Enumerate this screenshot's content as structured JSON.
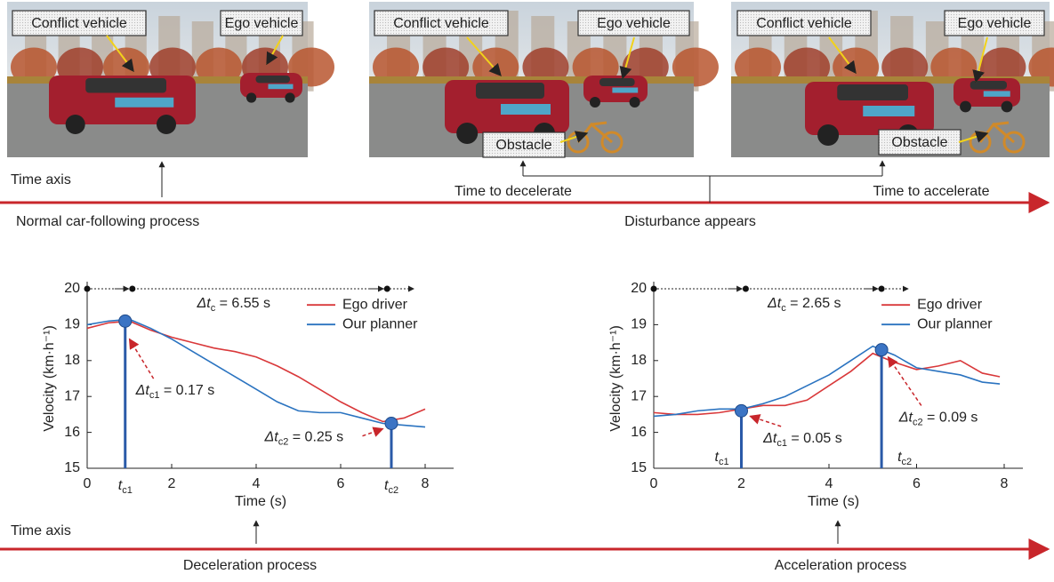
{
  "top": {
    "axis_label": "Time axis",
    "events": [
      "Normal car-following process",
      "Disturbance appears"
    ],
    "phases": [
      "Time to decelerate",
      "Time to accelerate"
    ]
  },
  "photos": [
    [
      "Conflict vehicle",
      "Ego vehicle"
    ],
    [
      "Conflict vehicle",
      "Ego vehicle",
      "Obstacle"
    ],
    [
      "Conflict vehicle",
      "Ego vehicle",
      "Obstacle"
    ]
  ],
  "bottom": {
    "axis_label": "Time axis",
    "events": [
      "Deceleration process",
      "Acceleration process"
    ]
  },
  "chart_data": [
    {
      "type": "line",
      "xlabel": "Time (s)",
      "ylabel": "Velocity (km·h⁻¹)",
      "xlim": [
        0,
        8
      ],
      "ylim": [
        15,
        20
      ],
      "xticks": [
        0,
        2,
        4,
        6,
        8
      ],
      "yticks": [
        15,
        16,
        17,
        18,
        19,
        20
      ],
      "x": [
        0,
        0.5,
        1,
        1.5,
        2,
        2.5,
        3,
        3.5,
        4,
        4.5,
        5,
        5.5,
        6,
        6.5,
        7,
        7.5,
        8
      ],
      "series": [
        {
          "name": "Ego driver",
          "color": "#d9383a",
          "values": [
            18.9,
            19.05,
            19.1,
            18.85,
            18.65,
            18.5,
            18.35,
            18.25,
            18.1,
            17.85,
            17.55,
            17.2,
            16.85,
            16.55,
            16.3,
            16.4,
            16.65
          ]
        },
        {
          "name": "Our planner",
          "color": "#2a73c0",
          "values": [
            19.0,
            19.1,
            19.15,
            18.9,
            18.6,
            18.25,
            17.9,
            17.55,
            17.2,
            16.85,
            16.6,
            16.55,
            16.55,
            16.4,
            16.25,
            16.2,
            16.15
          ]
        }
      ],
      "markers": {
        "x": [
          0.9,
          7.2
        ],
        "y": [
          19.1,
          16.25
        ]
      },
      "timeline_x": [
        0,
        1.07,
        7.1
      ],
      "annotations": {
        "delta_c": {
          "text": "Δt",
          "sub": "c",
          "suffix": " = 6.55 s"
        },
        "delta_1": {
          "text": "Δt",
          "sub": "c1",
          "suffix": " = 0.17 s"
        },
        "delta_2": {
          "text": "Δt",
          "sub": "c2",
          "suffix": " = 0.25 s"
        },
        "t1": {
          "text": "t",
          "sub": "c1"
        },
        "t2": {
          "text": "t",
          "sub": "c2"
        }
      }
    },
    {
      "type": "line",
      "xlabel": "Time (s)",
      "ylabel": "Velocity (km·h⁻¹)",
      "xlim": [
        0,
        8
      ],
      "ylim": [
        15,
        20
      ],
      "xticks": [
        0,
        2,
        4,
        6,
        8
      ],
      "yticks": [
        15,
        16,
        17,
        18,
        19,
        20
      ],
      "x": [
        0,
        0.5,
        1,
        1.5,
        2,
        2.5,
        3,
        3.5,
        4,
        4.5,
        5,
        5.5,
        6,
        6.5,
        7,
        7.5,
        7.9
      ],
      "series": [
        {
          "name": "Ego driver",
          "color": "#d9383a",
          "values": [
            16.55,
            16.5,
            16.5,
            16.55,
            16.65,
            16.75,
            16.75,
            16.9,
            17.3,
            17.7,
            18.2,
            17.95,
            17.75,
            17.85,
            18.0,
            17.65,
            17.55
          ]
        },
        {
          "name": "Our planner",
          "color": "#2a73c0",
          "values": [
            16.45,
            16.5,
            16.6,
            16.65,
            16.65,
            16.8,
            17.0,
            17.3,
            17.6,
            18.0,
            18.4,
            18.15,
            17.8,
            17.7,
            17.6,
            17.4,
            17.35
          ]
        }
      ],
      "markers": {
        "x": [
          2.0,
          5.2
        ],
        "y": [
          16.6,
          18.3
        ]
      },
      "timeline_x": [
        0,
        2.1,
        5.2
      ],
      "annotations": {
        "delta_c": {
          "text": "Δt",
          "sub": "c",
          "suffix": " = 2.65 s"
        },
        "delta_1": {
          "text": "Δt",
          "sub": "c1",
          "suffix": " = 0.05 s"
        },
        "delta_2": {
          "text": "Δt",
          "sub": "c2",
          "suffix": " = 0.09 s"
        },
        "t1": {
          "text": "t",
          "sub": "c1"
        },
        "t2": {
          "text": "t",
          "sub": "c2"
        }
      }
    }
  ]
}
